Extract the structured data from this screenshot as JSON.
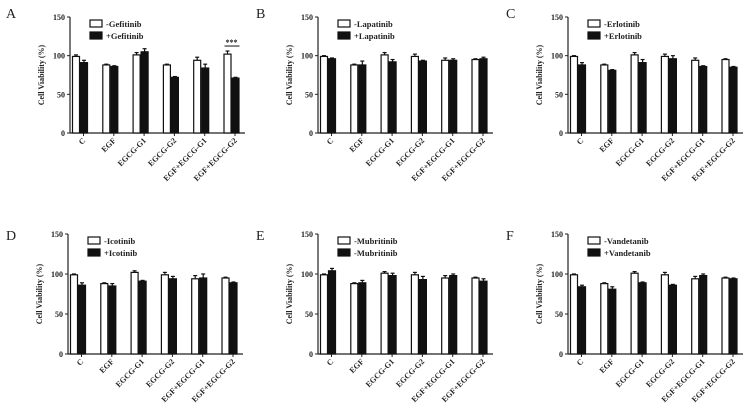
{
  "chart_data": [
    {
      "type": "bar",
      "panel_label": "A",
      "ylabel": "Cell Viability (%)",
      "ylim": [
        0,
        150
      ],
      "yticks": [
        0,
        50,
        100,
        150
      ],
      "grid": false,
      "legend_position": "top",
      "categories": [
        "C",
        "EGF",
        "EGCG-G1",
        "EGCG-G2",
        "EGF+EGCG-G1",
        "EGF+EGCG-G2"
      ],
      "series": [
        {
          "name": "-Gefitinib",
          "fill": "#ffffff",
          "values": [
            99,
            88,
            101,
            88,
            94,
            102
          ],
          "errors": [
            2,
            1,
            3,
            1,
            4,
            4
          ]
        },
        {
          "name": "+Gefitinib",
          "fill": "#111111",
          "values": [
            91,
            86,
            105,
            72,
            84,
            71
          ],
          "errors": [
            3,
            1,
            4,
            1,
            5,
            1
          ]
        }
      ],
      "annotations": [
        {
          "text": "***",
          "category": "EGF+EGCG-G2"
        }
      ]
    },
    {
      "type": "bar",
      "panel_label": "B",
      "ylabel": "Cell Viability (%)",
      "ylim": [
        0,
        150
      ],
      "yticks": [
        0,
        50,
        100,
        150
      ],
      "grid": false,
      "legend_position": "top",
      "categories": [
        "C",
        "EGF",
        "EGCG-G1",
        "EGCG-G2",
        "EGF+EGCG-G1",
        "EGF+EGCG-G2"
      ],
      "series": [
        {
          "name": "-Lapatinib",
          "fill": "#ffffff",
          "values": [
            99,
            88,
            101,
            99,
            94,
            95
          ],
          "errors": [
            1,
            1,
            3,
            3,
            3,
            1
          ]
        },
        {
          "name": "+Lapatinib",
          "fill": "#111111",
          "values": [
            96,
            88,
            92,
            93,
            94,
            96
          ],
          "errors": [
            1,
            5,
            3,
            1,
            2,
            2
          ]
        }
      ]
    },
    {
      "type": "bar",
      "panel_label": "C",
      "ylabel": "Cell Viability (%)",
      "ylim": [
        0,
        150
      ],
      "yticks": [
        0,
        50,
        100,
        150
      ],
      "grid": false,
      "legend_position": "top",
      "categories": [
        "C",
        "EGF",
        "EGCG-G1",
        "EGCG-G2",
        "EGF+EGCG-G1",
        "EGF+EGCG-G2"
      ],
      "series": [
        {
          "name": "-Erlotinib",
          "fill": "#ffffff",
          "values": [
            99,
            88,
            101,
            99,
            94,
            95
          ],
          "errors": [
            1,
            1,
            3,
            3,
            3,
            1
          ]
        },
        {
          "name": "+Erlotinib",
          "fill": "#111111",
          "values": [
            88,
            81,
            91,
            96,
            86,
            85
          ],
          "errors": [
            3,
            1,
            4,
            4,
            1,
            1
          ]
        }
      ]
    },
    {
      "type": "bar",
      "panel_label": "D",
      "ylabel": "Cell Viability (%)",
      "ylim": [
        0,
        150
      ],
      "yticks": [
        0,
        50,
        100,
        150
      ],
      "grid": false,
      "legend_position": "top",
      "categories": [
        "C",
        "EGF",
        "EGCG-G1",
        "EGCG-G2",
        "EGF+EGCG-G1",
        "EGF+EGCG-G2"
      ],
      "series": [
        {
          "name": "-Icotinib",
          "fill": "#ffffff",
          "values": [
            99,
            88,
            102,
            99,
            94,
            95
          ],
          "errors": [
            1,
            1,
            2,
            3,
            4,
            1
          ]
        },
        {
          "name": "+Icotinib",
          "fill": "#111111",
          "values": [
            86,
            85,
            91,
            94,
            95,
            89
          ],
          "errors": [
            3,
            3,
            1,
            3,
            5,
            1
          ]
        }
      ]
    },
    {
      "type": "bar",
      "panel_label": "E",
      "ylabel": "Cell Viability (%)",
      "ylim": [
        0,
        150
      ],
      "yticks": [
        0,
        50,
        100,
        150
      ],
      "grid": false,
      "legend_position": "top",
      "categories": [
        "C",
        "EGF",
        "EGCG-G1",
        "EGCG-G2",
        "EGF+EGCG-G1",
        "EGF+EGCG-G2"
      ],
      "series": [
        {
          "name": "-Mubritinib",
          "fill": "#ffffff",
          "values": [
            99,
            88,
            101,
            99,
            95,
            95
          ],
          "errors": [
            1,
            1,
            2,
            3,
            3,
            1
          ]
        },
        {
          "name": "-Mubritinib",
          "fill": "#111111",
          "values": [
            104,
            89,
            98,
            93,
            98,
            91
          ],
          "errors": [
            3,
            3,
            3,
            4,
            2,
            3
          ]
        }
      ]
    },
    {
      "type": "bar",
      "panel_label": "F",
      "ylabel": "Cell Viability (%)",
      "ylim": [
        0,
        150
      ],
      "yticks": [
        0,
        50,
        100,
        150
      ],
      "grid": false,
      "legend_position": "top",
      "categories": [
        "C",
        "EGF",
        "EGCG-G1",
        "EGCG-G2",
        "EGF+EGCG-G1",
        "EGF+EGCG-G2"
      ],
      "series": [
        {
          "name": "-Vandetanib",
          "fill": "#ffffff",
          "values": [
            99,
            88,
            101,
            99,
            94,
            95
          ],
          "errors": [
            1,
            1,
            2,
            3,
            3,
            1
          ]
        },
        {
          "name": "+Vandetanib",
          "fill": "#111111",
          "values": [
            84,
            81,
            89,
            86,
            98,
            94
          ],
          "errors": [
            2,
            3,
            1,
            1,
            2,
            1
          ]
        }
      ]
    }
  ]
}
